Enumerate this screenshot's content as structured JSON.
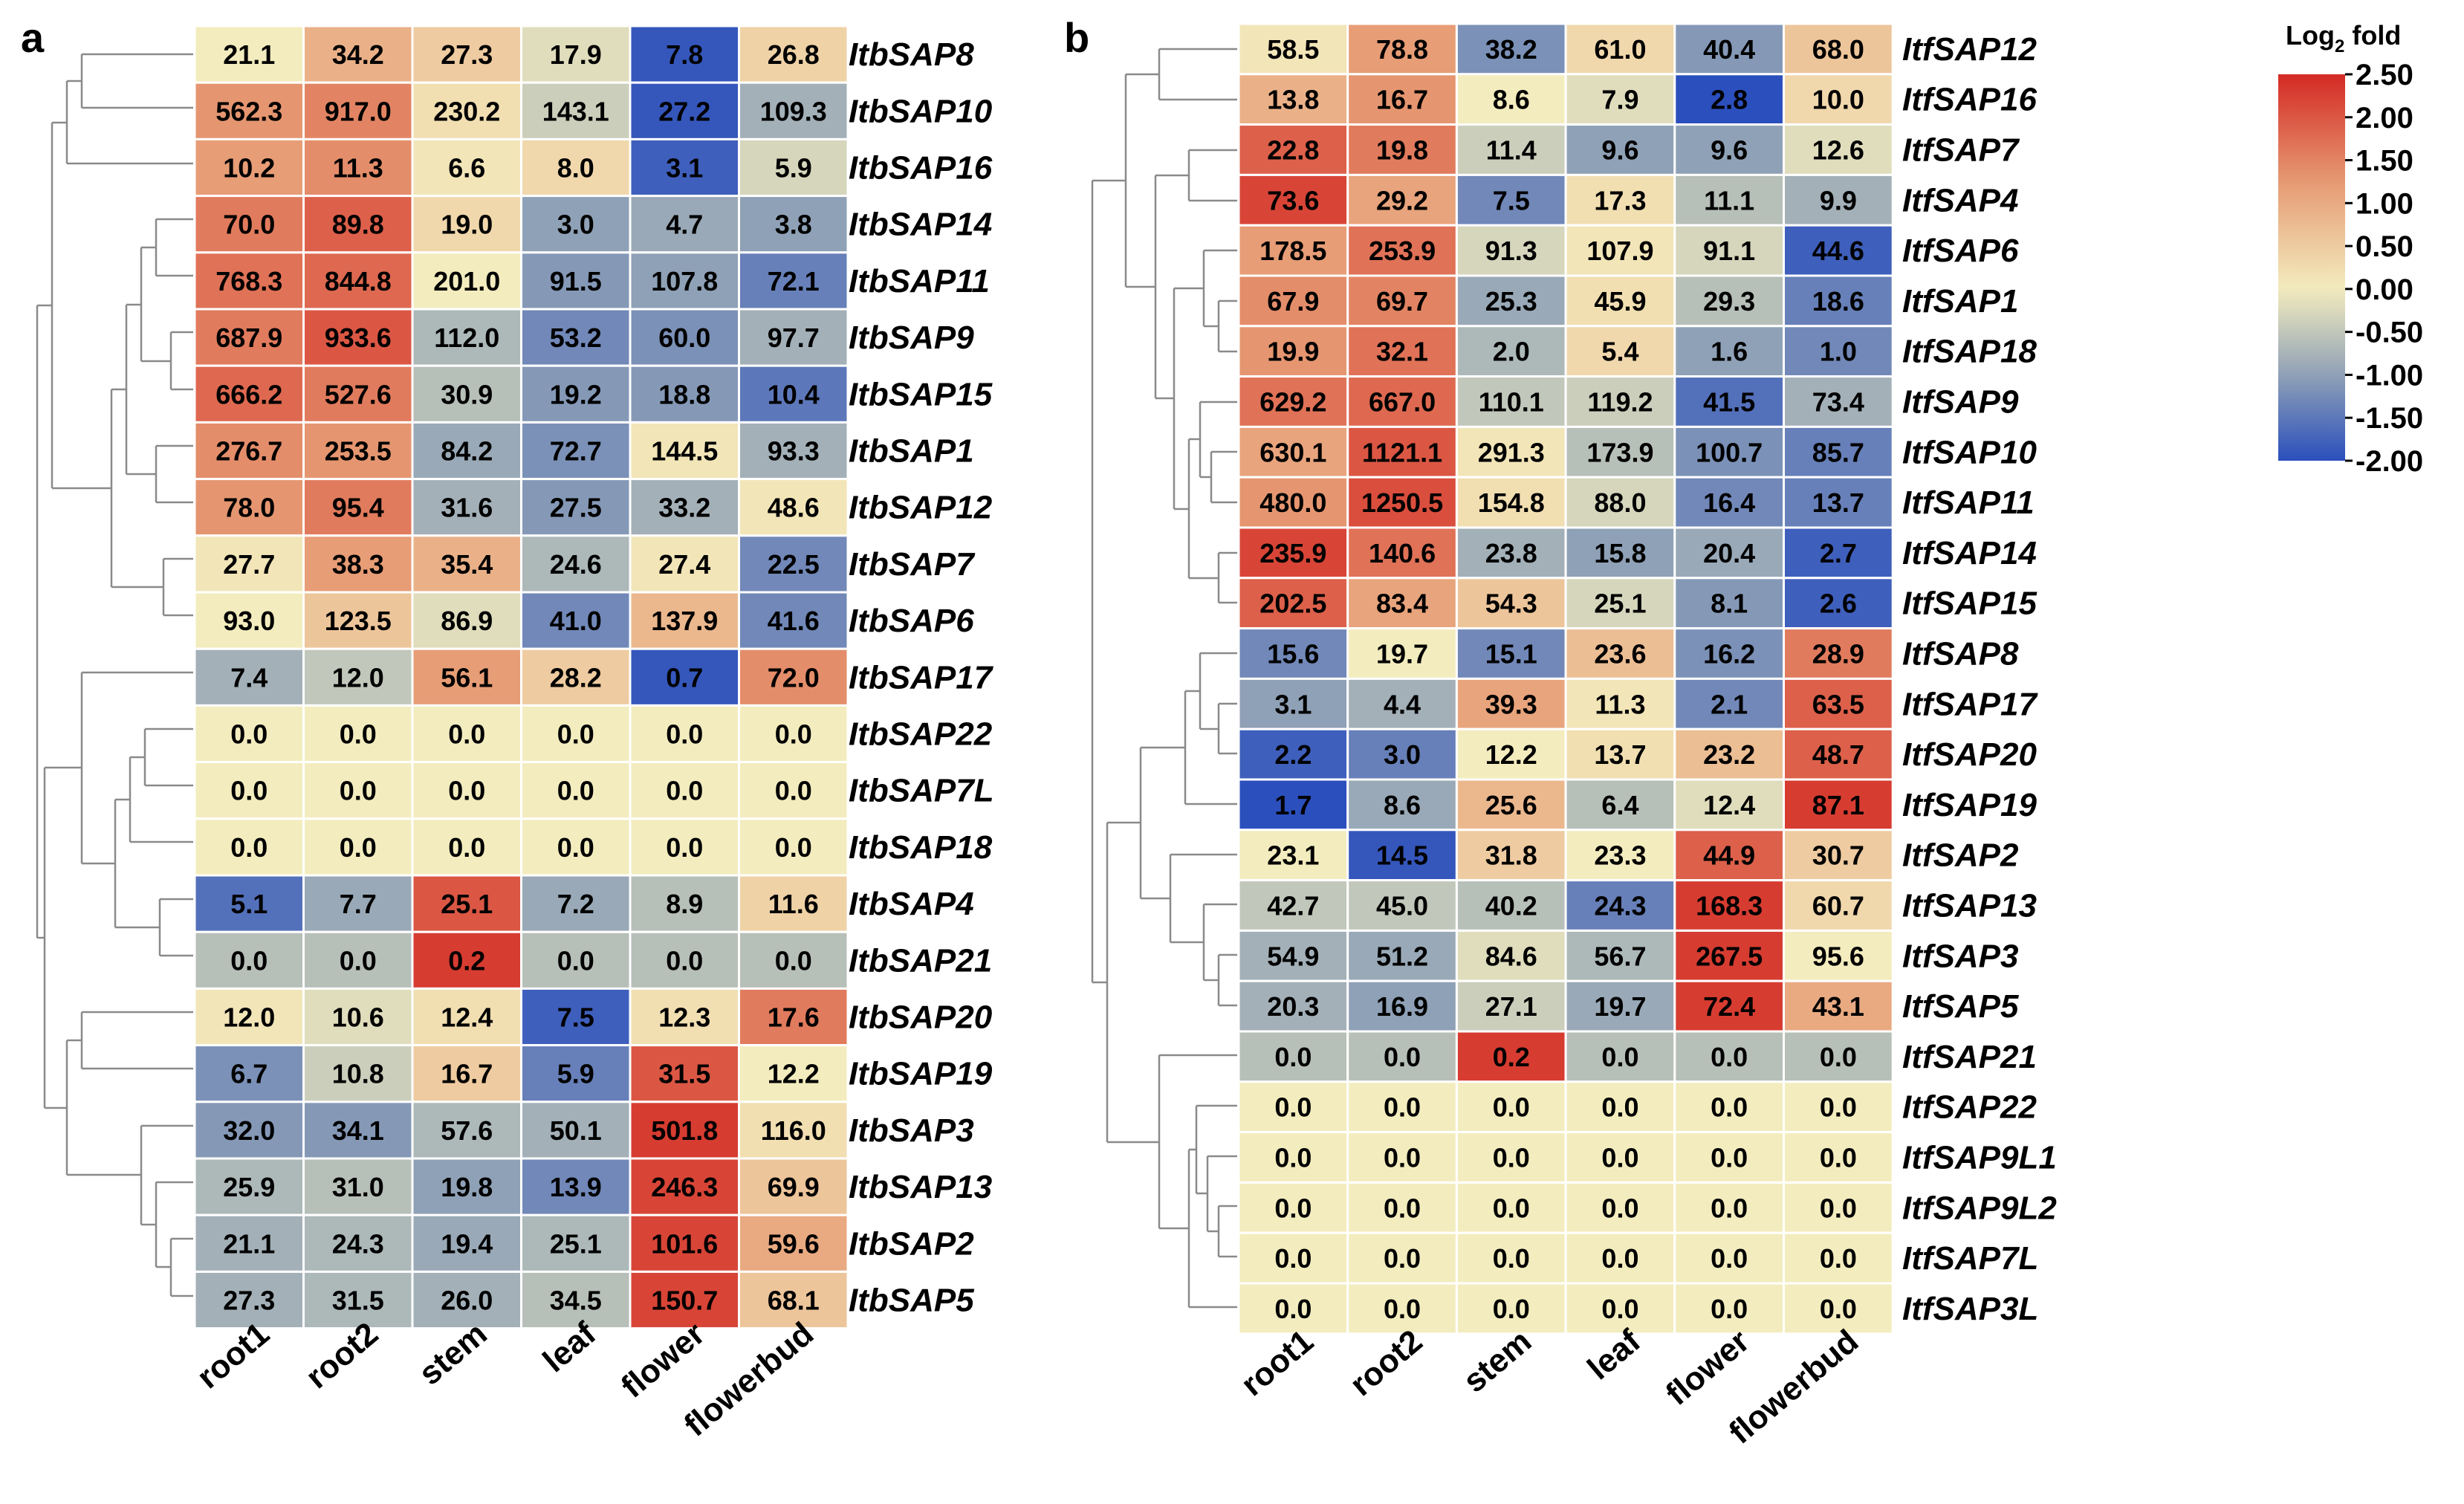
{
  "chart_data": [
    {
      "type": "heatmap",
      "panel": "a",
      "columns": [
        "root1",
        "root2",
        "stem",
        "leaf",
        "flower",
        "flowerbud"
      ],
      "rows": [
        {
          "name": "ItbSAP8",
          "values": [
            "21.1",
            "34.2",
            "27.3",
            "17.9",
            "7.8",
            "26.8"
          ],
          "log2": [
            0.0,
            0.9,
            0.5,
            -0.2,
            -1.9,
            0.4
          ]
        },
        {
          "name": "ItbSAP10",
          "values": [
            "562.3",
            "917.0",
            "230.2",
            "143.1",
            "27.2",
            "109.3"
          ],
          "log2": [
            1.3,
            1.5,
            0.2,
            -0.4,
            -1.9,
            -0.8
          ]
        },
        {
          "name": "ItbSAP16",
          "values": [
            "10.2",
            "11.3",
            "6.6",
            "8.0",
            "3.1",
            "5.9"
          ],
          "log2": [
            1.2,
            1.4,
            0.1,
            0.3,
            -1.8,
            -0.3
          ]
        },
        {
          "name": "ItbSAP14",
          "values": [
            "70.0",
            "89.8",
            "19.0",
            "3.0",
            "4.7",
            "3.8"
          ],
          "log2": [
            1.6,
            1.9,
            0.3,
            -1.0,
            -0.9,
            -1.0
          ]
        },
        {
          "name": "ItbSAP11",
          "values": [
            "768.3",
            "844.8",
            "201.0",
            "91.5",
            "107.8",
            "72.1"
          ],
          "log2": [
            1.7,
            1.8,
            0.0,
            -1.1,
            -1.0,
            -1.4
          ]
        },
        {
          "name": "ItbSAP9",
          "values": [
            "687.9",
            "933.6",
            "112.0",
            "53.2",
            "60.0",
            "97.7"
          ],
          "log2": [
            1.6,
            2.0,
            -0.7,
            -1.3,
            -1.2,
            -0.8
          ]
        },
        {
          "name": "ItbSAP15",
          "values": [
            "666.2",
            "527.6",
            "30.9",
            "19.2",
            "18.8",
            "10.4"
          ],
          "log2": [
            1.8,
            1.6,
            -0.6,
            -1.1,
            -1.1,
            -1.5
          ]
        },
        {
          "name": "ItbSAP1",
          "values": [
            "276.7",
            "253.5",
            "84.2",
            "72.7",
            "144.5",
            "93.3"
          ],
          "log2": [
            1.4,
            1.3,
            -0.9,
            -1.2,
            0.1,
            -0.8
          ]
        },
        {
          "name": "ItbSAP12",
          "values": [
            "78.0",
            "95.4",
            "31.6",
            "27.5",
            "33.2",
            "48.6"
          ],
          "log2": [
            1.3,
            1.6,
            -0.8,
            -1.1,
            -0.8,
            0.1
          ]
        },
        {
          "name": "ItbSAP7",
          "values": [
            "27.7",
            "38.3",
            "35.4",
            "24.6",
            "27.4",
            "22.5"
          ],
          "log2": [
            0.1,
            1.2,
            0.9,
            -0.7,
            0.1,
            -1.3
          ]
        },
        {
          "name": "ItbSAP6",
          "values": [
            "93.0",
            "123.5",
            "86.9",
            "41.0",
            "137.9",
            "41.6"
          ],
          "log2": [
            0.0,
            0.6,
            -0.2,
            -1.3,
            0.8,
            -1.3
          ]
        },
        {
          "name": "ItbSAP17",
          "values": [
            "7.4",
            "12.0",
            "56.1",
            "28.2",
            "0.7",
            "72.0"
          ],
          "log2": [
            -0.8,
            -0.5,
            1.2,
            0.5,
            -1.9,
            1.4
          ]
        },
        {
          "name": "ItbSAP22",
          "values": [
            "0.0",
            "0.0",
            "0.0",
            "0.0",
            "0.0",
            "0.0"
          ],
          "log2": [
            0.0,
            0.0,
            0.0,
            0.0,
            0.0,
            0.0
          ]
        },
        {
          "name": "ItbSAP7L",
          "values": [
            "0.0",
            "0.0",
            "0.0",
            "0.0",
            "0.0",
            "0.0"
          ],
          "log2": [
            0.0,
            0.0,
            0.0,
            0.0,
            0.0,
            0.0
          ]
        },
        {
          "name": "ItbSAP18",
          "values": [
            "0.0",
            "0.0",
            "0.0",
            "0.0",
            "0.0",
            "0.0"
          ],
          "log2": [
            0.0,
            0.0,
            0.0,
            0.0,
            0.0,
            0.0
          ]
        },
        {
          "name": "ItbSAP4",
          "values": [
            "5.1",
            "7.7",
            "25.1",
            "7.2",
            "8.9",
            "11.6"
          ],
          "log2": [
            -1.6,
            -0.9,
            2.0,
            -0.9,
            -0.6,
            0.4
          ]
        },
        {
          "name": "ItbSAP21",
          "values": [
            "0.0",
            "0.0",
            "0.2",
            "0.0",
            "0.0",
            "0.0"
          ],
          "log2": [
            -0.6,
            -0.6,
            2.3,
            -0.6,
            -0.6,
            -0.6
          ]
        },
        {
          "name": "ItbSAP20",
          "values": [
            "12.0",
            "10.6",
            "12.4",
            "7.5",
            "12.3",
            "17.6"
          ],
          "log2": [
            0.1,
            -0.2,
            0.2,
            -1.8,
            0.2,
            1.6
          ]
        },
        {
          "name": "ItbSAP19",
          "values": [
            "6.7",
            "10.8",
            "16.7",
            "5.9",
            "31.5",
            "12.2"
          ],
          "log2": [
            -1.2,
            -0.4,
            0.5,
            -1.4,
            2.0,
            0.0
          ]
        },
        {
          "name": "ItbSAP3",
          "values": [
            "32.0",
            "34.1",
            "57.6",
            "50.1",
            "501.8",
            "116.0"
          ],
          "log2": [
            -1.1,
            -1.1,
            -0.7,
            -0.8,
            2.3,
            0.2
          ]
        },
        {
          "name": "ItbSAP13",
          "values": [
            "25.9",
            "31.0",
            "19.8",
            "13.9",
            "246.3",
            "69.9"
          ],
          "log2": [
            -0.7,
            -0.6,
            -1.0,
            -1.3,
            2.2,
            0.6
          ]
        },
        {
          "name": "ItbSAP2",
          "values": [
            "21.1",
            "24.3",
            "19.4",
            "25.1",
            "101.6",
            "59.6"
          ],
          "log2": [
            -0.8,
            -0.7,
            -0.9,
            -0.7,
            2.2,
            1.0
          ]
        },
        {
          "name": "ItbSAP5",
          "values": [
            "27.3",
            "31.5",
            "26.0",
            "34.5",
            "150.7",
            "68.1"
          ],
          "log2": [
            -0.8,
            -0.7,
            -0.8,
            -0.6,
            2.2,
            0.6
          ]
        }
      ]
    },
    {
      "type": "heatmap",
      "panel": "b",
      "columns": [
        "root1",
        "root2",
        "stem",
        "leaf",
        "flower",
        "flowerbud"
      ],
      "rows": [
        {
          "name": "ItfSAP12",
          "values": [
            "58.5",
            "78.8",
            "38.2",
            "61.0",
            "40.4",
            "68.0"
          ],
          "log2": [
            0.1,
            1.2,
            -1.2,
            0.3,
            -1.1,
            0.6
          ]
        },
        {
          "name": "ItfSAP16",
          "values": [
            "13.8",
            "16.7",
            "8.6",
            "7.9",
            "2.8",
            "10.0"
          ],
          "log2": [
            0.9,
            1.3,
            0.0,
            -0.2,
            -2.0,
            0.3
          ]
        },
        {
          "name": "ItfSAP7",
          "values": [
            "22.8",
            "19.8",
            "11.4",
            "9.6",
            "9.6",
            "12.6"
          ],
          "log2": [
            1.9,
            1.6,
            -0.4,
            -1.0,
            -1.0,
            -0.2
          ]
        },
        {
          "name": "ItfSAP4",
          "values": [
            "73.6",
            "29.2",
            "7.5",
            "17.3",
            "11.1",
            "9.9"
          ],
          "log2": [
            2.2,
            1.1,
            -1.3,
            0.2,
            -0.6,
            -0.8
          ]
        },
        {
          "name": "ItfSAP6",
          "values": [
            "178.5",
            "253.9",
            "91.3",
            "107.9",
            "91.1",
            "44.6"
          ],
          "log2": [
            1.2,
            1.7,
            -0.3,
            0.1,
            -0.3,
            -1.8
          ]
        },
        {
          "name": "ItfSAP1",
          "values": [
            "67.9",
            "69.7",
            "25.3",
            "45.9",
            "29.3",
            "18.6"
          ],
          "log2": [
            1.4,
            1.5,
            -0.9,
            0.2,
            -0.6,
            -1.4
          ]
        },
        {
          "name": "ItfSAP18",
          "values": [
            "19.9",
            "32.1",
            "2.0",
            "5.4",
            "1.6",
            "1.0"
          ],
          "log2": [
            1.3,
            1.7,
            -0.7,
            0.3,
            -1.0,
            -1.3
          ]
        },
        {
          "name": "ItfSAP9",
          "values": [
            "629.2",
            "667.0",
            "110.1",
            "119.2",
            "41.5",
            "73.4"
          ],
          "log2": [
            1.7,
            1.8,
            -0.5,
            -0.4,
            -1.6,
            -0.8
          ]
        },
        {
          "name": "ItfSAP10",
          "values": [
            "630.1",
            "1121.1",
            "291.3",
            "173.9",
            "100.7",
            "85.7"
          ],
          "log2": [
            1.1,
            2.0,
            0.1,
            -0.6,
            -1.2,
            -1.4
          ]
        },
        {
          "name": "ItfSAP11",
          "values": [
            "480.0",
            "1250.5",
            "154.8",
            "88.0",
            "16.4",
            "13.7"
          ],
          "log2": [
            1.3,
            2.1,
            0.2,
            -0.3,
            -1.3,
            -1.4
          ]
        },
        {
          "name": "ItfSAP14",
          "values": [
            "235.9",
            "140.6",
            "23.8",
            "15.8",
            "20.4",
            "2.7"
          ],
          "log2": [
            2.2,
            1.7,
            -0.8,
            -1.0,
            -0.9,
            -1.8
          ]
        },
        {
          "name": "ItfSAP15",
          "values": [
            "202.5",
            "83.4",
            "54.3",
            "25.1",
            "8.1",
            "2.6"
          ],
          "log2": [
            1.9,
            1.1,
            0.6,
            -0.3,
            -1.1,
            -1.8
          ]
        },
        {
          "name": "ItfSAP8",
          "values": [
            "15.6",
            "19.7",
            "15.1",
            "23.6",
            "16.2",
            "28.9"
          ],
          "log2": [
            -1.3,
            0.0,
            -1.3,
            0.7,
            -1.2,
            1.6
          ]
        },
        {
          "name": "ItfSAP17",
          "values": [
            "3.1",
            "4.4",
            "39.3",
            "11.3",
            "2.1",
            "63.5"
          ],
          "log2": [
            -1.0,
            -0.8,
            1.1,
            0.1,
            -1.3,
            1.9
          ]
        },
        {
          "name": "ItfSAP20",
          "values": [
            "2.2",
            "3.0",
            "12.2",
            "13.7",
            "23.2",
            "48.7"
          ],
          "log2": [
            -1.8,
            -1.4,
            0.0,
            0.2,
            0.7,
            1.9
          ]
        },
        {
          "name": "ItfSAP19",
          "values": [
            "1.7",
            "8.6",
            "25.6",
            "6.4",
            "12.4",
            "87.1"
          ],
          "log2": [
            -2.0,
            -0.9,
            0.8,
            -0.6,
            -0.2,
            2.3
          ]
        },
        {
          "name": "ItfSAP2",
          "values": [
            "23.1",
            "14.5",
            "31.8",
            "23.3",
            "44.9",
            "30.7"
          ],
          "log2": [
            0.0,
            -1.9,
            0.5,
            0.0,
            1.9,
            0.5
          ]
        },
        {
          "name": "ItfSAP13",
          "values": [
            "42.7",
            "45.0",
            "40.2",
            "24.3",
            "168.3",
            "60.7"
          ],
          "log2": [
            -0.5,
            -0.5,
            -0.6,
            -1.4,
            2.3,
            0.3
          ]
        },
        {
          "name": "ItfSAP3",
          "values": [
            "54.9",
            "51.2",
            "84.6",
            "56.7",
            "267.5",
            "95.6"
          ],
          "log2": [
            -0.8,
            -0.9,
            -0.2,
            -0.7,
            2.3,
            0.0
          ]
        },
        {
          "name": "ItfSAP5",
          "values": [
            "20.3",
            "16.9",
            "27.1",
            "19.7",
            "72.4",
            "43.1"
          ],
          "log2": [
            -0.8,
            -1.0,
            -0.4,
            -0.9,
            2.3,
            1.0
          ]
        },
        {
          "name": "ItfSAP21",
          "values": [
            "0.0",
            "0.0",
            "0.2",
            "0.0",
            "0.0",
            "0.0"
          ],
          "log2": [
            -0.6,
            -0.6,
            2.3,
            -0.6,
            -0.6,
            -0.6
          ]
        },
        {
          "name": "ItfSAP22",
          "values": [
            "0.0",
            "0.0",
            "0.0",
            "0.0",
            "0.0",
            "0.0"
          ],
          "log2": [
            0.0,
            0.0,
            0.0,
            0.0,
            0.0,
            0.0
          ]
        },
        {
          "name": "ItfSAP9L1",
          "values": [
            "0.0",
            "0.0",
            "0.0",
            "0.0",
            "0.0",
            "0.0"
          ],
          "log2": [
            0.0,
            0.0,
            0.0,
            0.0,
            0.0,
            0.0
          ]
        },
        {
          "name": "ItfSAP9L2",
          "values": [
            "0.0",
            "0.0",
            "0.0",
            "0.0",
            "0.0",
            "0.0"
          ],
          "log2": [
            0.0,
            0.0,
            0.0,
            0.0,
            0.0,
            0.0
          ]
        },
        {
          "name": "ItfSAP7L",
          "values": [
            "0.0",
            "0.0",
            "0.0",
            "0.0",
            "0.0",
            "0.0"
          ],
          "log2": [
            0.0,
            0.0,
            0.0,
            0.0,
            0.0,
            0.0
          ]
        },
        {
          "name": "ItfSAP3L",
          "values": [
            "0.0",
            "0.0",
            "0.0",
            "0.0",
            "0.0",
            "0.0"
          ],
          "log2": [
            0.0,
            0.0,
            0.0,
            0.0,
            0.0,
            0.0
          ]
        }
      ]
    }
  ],
  "legend": {
    "title_main": "Log",
    "title_sub": "2",
    "title_tail": "fold",
    "range": [
      -2.0,
      2.5
    ],
    "ticks": [
      "2.50",
      "2.00",
      "1.50",
      "1.00",
      "0.50",
      "0.00",
      "-0.50",
      "-1.00",
      "-1.50",
      "-2.00"
    ],
    "tick_values": [
      2.5,
      2.0,
      1.5,
      1.0,
      0.5,
      0.0,
      -0.5,
      -1.0,
      -1.5,
      -2.0
    ]
  },
  "colors": {
    "low": "#2b4fbd",
    "mid_low": "#8fa1b6",
    "neutral": "#f3ecbe",
    "mid_high": "#e69a73",
    "high": "#d42a24",
    "grid_line": "#ffffff",
    "dendrogram": "#8a8a8a"
  }
}
